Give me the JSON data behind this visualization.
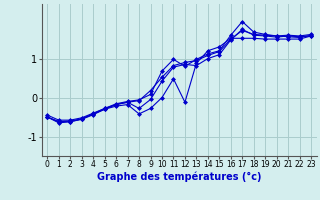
{
  "title": "",
  "xlabel": "Graphe des températures (°c)",
  "ylabel": "",
  "background_color": "#d4eeee",
  "grid_color": "#aacccc",
  "line_color": "#0000cc",
  "xlim": [
    -0.5,
    23.5
  ],
  "ylim": [
    -1.5,
    2.4
  ],
  "yticks": [
    -1,
    0,
    1
  ],
  "xticks": [
    0,
    1,
    2,
    3,
    4,
    5,
    6,
    7,
    8,
    9,
    10,
    11,
    12,
    13,
    14,
    15,
    16,
    17,
    18,
    19,
    20,
    21,
    22,
    23
  ],
  "xtick_labels": [
    "0",
    "1",
    "2",
    "3",
    "4",
    "5",
    "6",
    "7",
    "8",
    "9",
    "10",
    "11",
    "12",
    "13",
    "14",
    "15",
    "16",
    "17",
    "18",
    "19",
    "20",
    "21",
    "22",
    "23"
  ],
  "series": [
    [
      -0.5,
      -0.62,
      -0.62,
      -0.56,
      -0.44,
      -0.3,
      -0.18,
      -0.12,
      -0.08,
      0.18,
      0.52,
      0.82,
      0.9,
      0.95,
      1.08,
      1.18,
      1.5,
      1.72,
      1.62,
      1.6,
      1.58,
      1.6,
      1.58,
      1.62
    ],
    [
      -0.5,
      -0.65,
      -0.62,
      -0.55,
      -0.42,
      -0.3,
      -0.22,
      -0.18,
      -0.42,
      -0.28,
      0.0,
      0.48,
      -0.12,
      0.88,
      1.2,
      1.3,
      1.52,
      1.52,
      1.52,
      1.5,
      1.5,
      1.5,
      1.5,
      1.58
    ],
    [
      -0.5,
      -0.62,
      -0.6,
      -0.55,
      -0.42,
      -0.28,
      -0.18,
      -0.12,
      -0.28,
      -0.05,
      0.42,
      0.78,
      0.85,
      0.82,
      1.0,
      1.1,
      1.48,
      1.75,
      1.6,
      1.58,
      1.55,
      1.58,
      1.56,
      1.58
    ],
    [
      -0.45,
      -0.58,
      -0.58,
      -0.52,
      -0.4,
      -0.28,
      -0.16,
      -0.1,
      -0.06,
      0.08,
      0.68,
      0.98,
      0.8,
      0.98,
      1.12,
      1.2,
      1.6,
      1.95,
      1.68,
      1.62,
      1.58,
      1.56,
      1.54,
      1.6
    ]
  ]
}
